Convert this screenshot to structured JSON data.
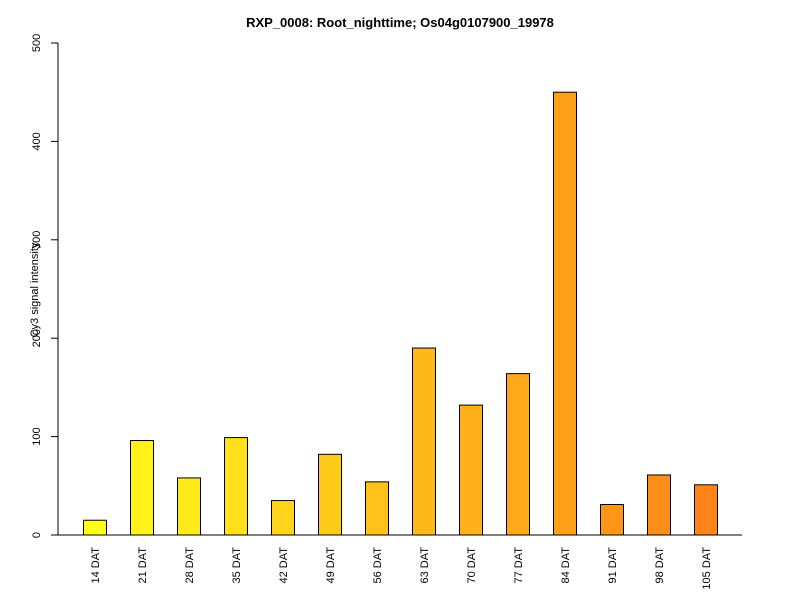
{
  "chart_data": {
    "type": "bar",
    "title": "RXP_0008: Root_nighttime; Os04g0107900_19978",
    "xlabel": "",
    "ylabel": "Cy3 signal intensity",
    "ylim": [
      0,
      500
    ],
    "yticks": [
      0,
      100,
      200,
      300,
      400,
      500
    ],
    "grid": false,
    "categories": [
      "14 DAT",
      "21 DAT",
      "28 DAT",
      "35 DAT",
      "42 DAT",
      "49 DAT",
      "56 DAT",
      "63 DAT",
      "70 DAT",
      "77 DAT",
      "84 DAT",
      "91 DAT",
      "98 DAT",
      "105 DAT"
    ],
    "values": [
      15,
      96,
      58,
      99,
      35,
      82,
      54,
      190,
      132,
      164,
      450,
      31,
      61,
      51
    ],
    "colors": [
      "#FFFF1A",
      "#FFF31A",
      "#FFEA1A",
      "#FFE01A",
      "#FFD41A",
      "#FFCB1A",
      "#FFC21A",
      "#FFB81A",
      "#FFB01A",
      "#FFA81A",
      "#FFA01A",
      "#FF961A",
      "#FF8D1A",
      "#FF841A"
    ]
  }
}
